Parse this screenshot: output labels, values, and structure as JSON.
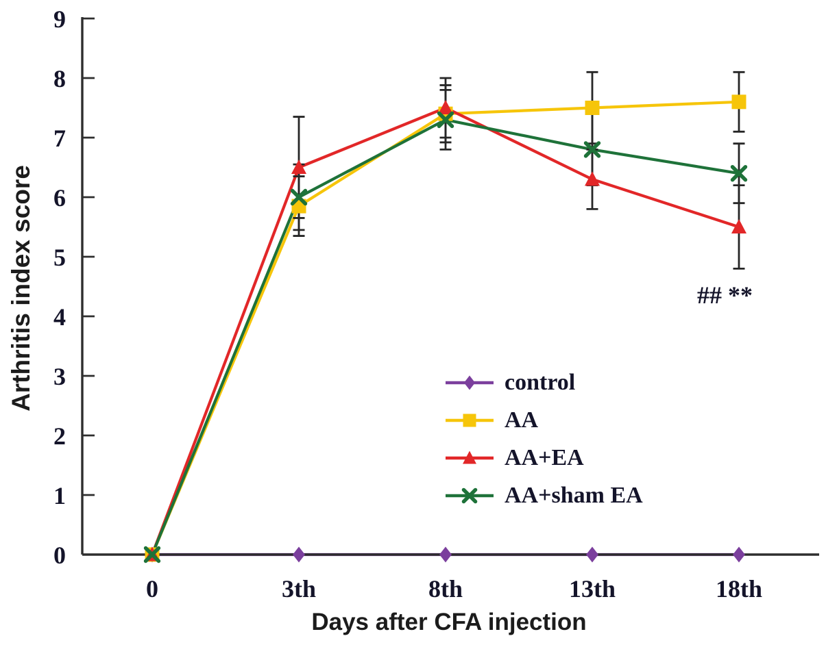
{
  "chart_data": {
    "type": "line",
    "title": "",
    "xlabel": "Days after CFA injection",
    "ylabel": "Arthritis index score",
    "categories": [
      "0",
      "3th",
      "8th",
      "13th",
      "18th"
    ],
    "ylim": [
      0,
      9
    ],
    "yticks": [
      0,
      1,
      2,
      3,
      4,
      5,
      6,
      7,
      8,
      9
    ],
    "grid": false,
    "legend": {
      "position": "inside-center-right",
      "entries": [
        "control",
        "AA",
        "AA+EA",
        "AA+sham EA"
      ]
    },
    "series": [
      {
        "name": "control",
        "color": "#7b3f9d",
        "marker": "diamond",
        "values": [
          0,
          0,
          0,
          0,
          0
        ],
        "errors": [
          0,
          0,
          0,
          0,
          0
        ]
      },
      {
        "name": "AA",
        "color": "#f6c50a",
        "marker": "square",
        "values": [
          0,
          5.85,
          7.4,
          7.5,
          7.6
        ],
        "errors": [
          0,
          0.5,
          0.48,
          0.6,
          0.5
        ]
      },
      {
        "name": "AA+EA",
        "color": "#e22728",
        "marker": "triangle-up",
        "values": [
          0,
          6.5,
          7.5,
          6.3,
          5.5
        ],
        "errors": [
          0,
          0.85,
          0.5,
          0.5,
          0.7
        ]
      },
      {
        "name": "AA+sham EA",
        "color": "#1e7239",
        "marker": "x-cross",
        "values": [
          0,
          6.0,
          7.3,
          6.8,
          6.4
        ],
        "errors": [
          0,
          0.55,
          0.5,
          0.6,
          0.5
        ]
      }
    ],
    "annotation": {
      "text": "## **",
      "near_category": "18th",
      "y_value": 4.3
    },
    "axis_color": "#2e2e2e",
    "error_bar_color": "#262626"
  }
}
